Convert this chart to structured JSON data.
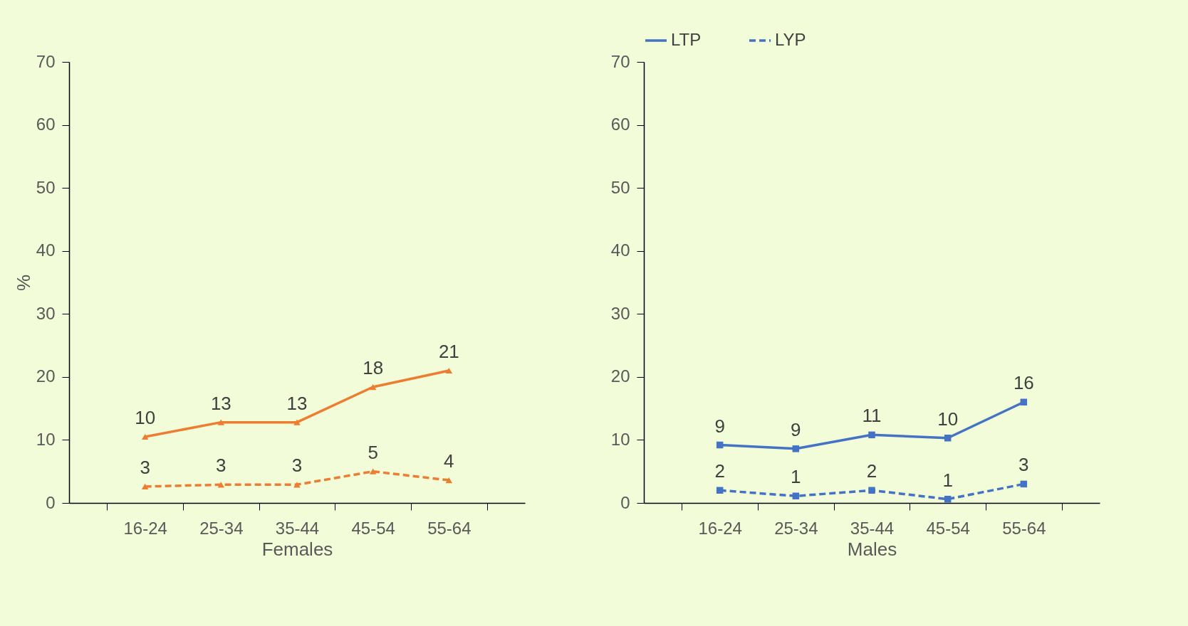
{
  "chart_data": [
    {
      "type": "line",
      "xlabel": "Females",
      "ylabel": "%",
      "categories": [
        "16-24",
        "25-34",
        "35-44",
        "45-54",
        "55-64"
      ],
      "ylim": [
        0,
        70
      ],
      "yticks": [
        0,
        10,
        20,
        30,
        40,
        50,
        60,
        70
      ],
      "grid": false,
      "marker": "triangle",
      "legend": false,
      "series": [
        {
          "color": "#ed7d31",
          "line_style": "solid",
          "values": [
            10.5,
            12.8,
            12.8,
            18.4,
            21.0
          ],
          "value_labels": [
            "10",
            "13",
            "13",
            "18",
            "21"
          ]
        },
        {
          "color": "#ed7d31",
          "line_style": "dashed",
          "values": [
            2.6,
            2.9,
            2.9,
            5.0,
            3.6
          ],
          "value_labels": [
            "3",
            "3",
            "3",
            "5",
            "4"
          ]
        }
      ]
    },
    {
      "type": "line",
      "xlabel": "Males",
      "categories": [
        "16-24",
        "25-34",
        "35-44",
        "45-54",
        "55-64"
      ],
      "ylim": [
        0,
        70
      ],
      "yticks": [
        0,
        10,
        20,
        30,
        40,
        50,
        60,
        70
      ],
      "grid": false,
      "marker": "square",
      "legend": "top",
      "series": [
        {
          "name": "LTP",
          "color": "#4472c4",
          "line_style": "solid",
          "values": [
            9.2,
            8.6,
            10.8,
            10.3,
            16.0
          ],
          "value_labels": [
            "9",
            "9",
            "11",
            "10",
            "16"
          ]
        },
        {
          "name": "LYP",
          "color": "#4472c4",
          "line_style": "dashed",
          "values": [
            2.0,
            1.1,
            2.0,
            0.6,
            3.0
          ],
          "value_labels": [
            "2",
            "1",
            "2",
            "1",
            "3"
          ]
        }
      ]
    }
  ]
}
